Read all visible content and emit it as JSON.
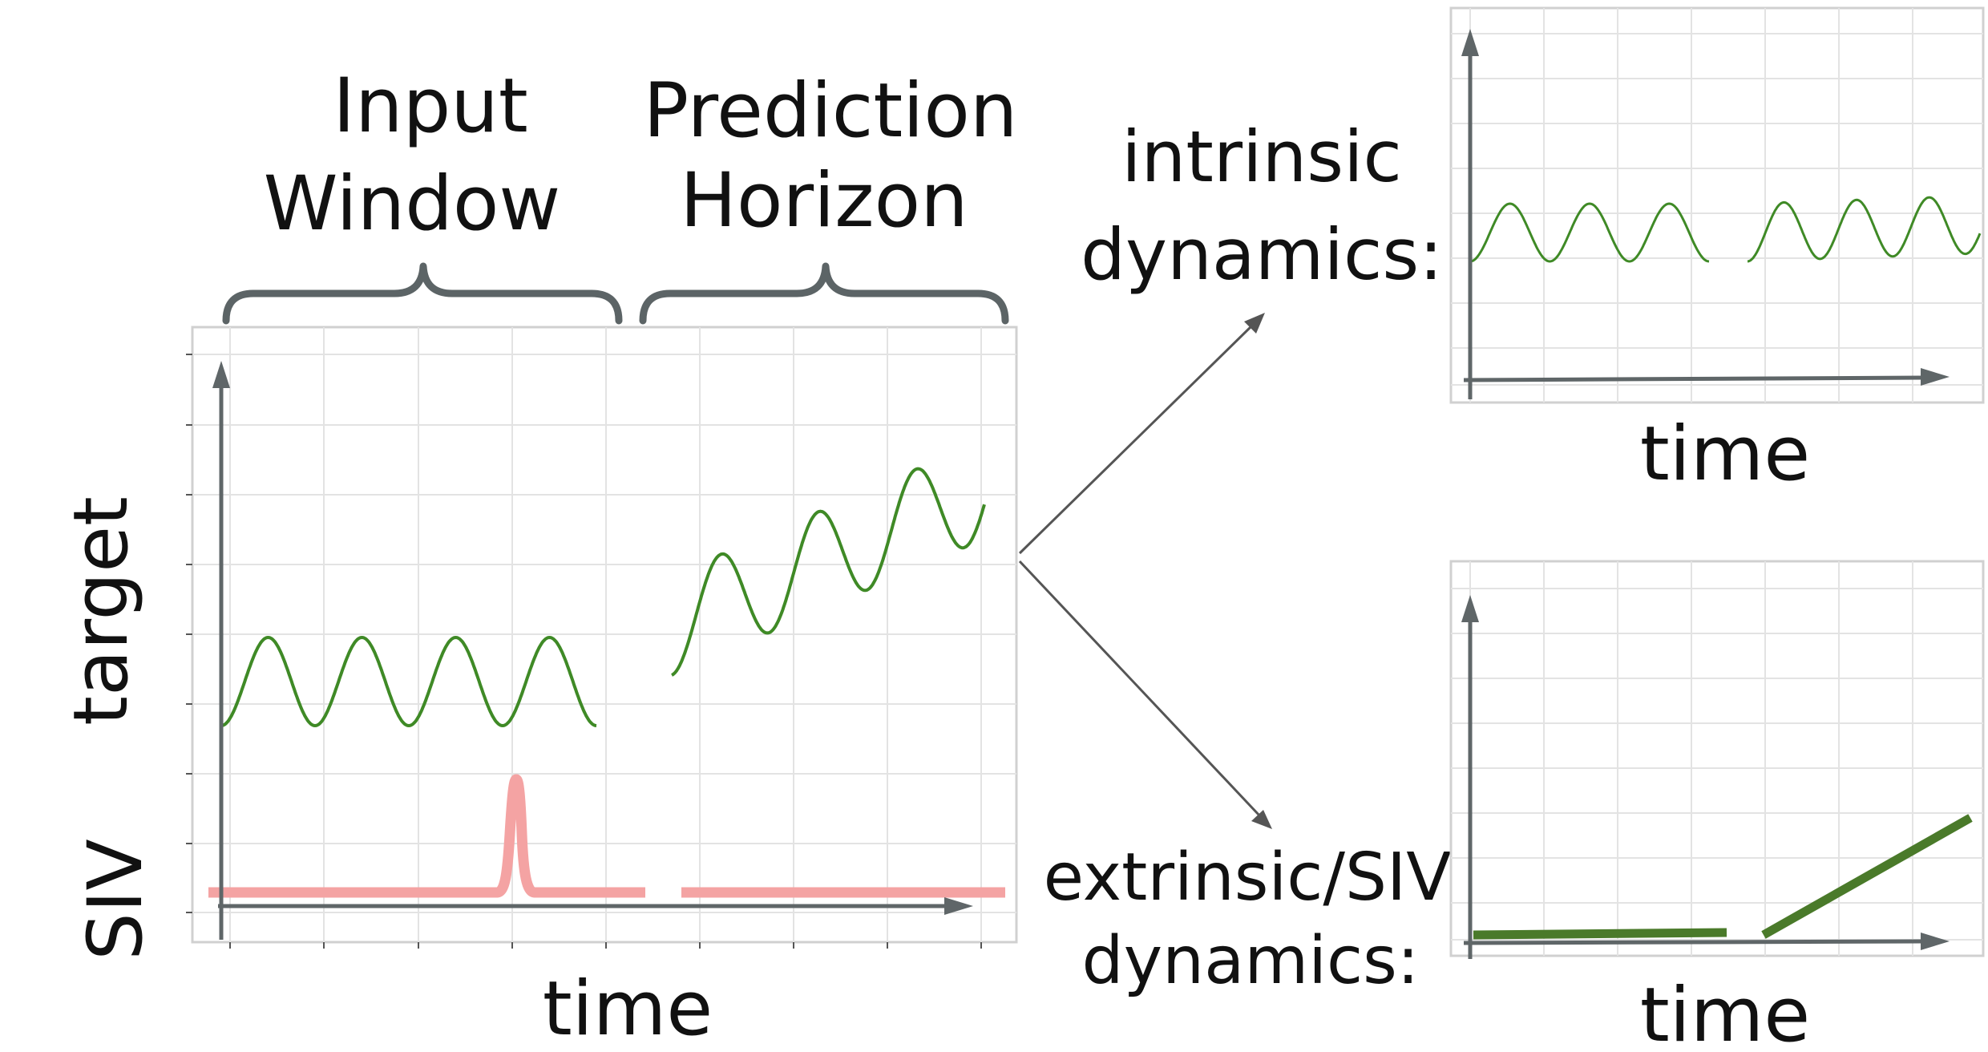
{
  "labels": {
    "input_window": [
      "Input",
      "Window"
    ],
    "prediction_horizon": [
      "Prediction",
      "Horizon"
    ],
    "target_axis": "target",
    "siv_axis": "SIV",
    "time_main": "time",
    "intrinsic": [
      "intrinsic",
      "dynamics:"
    ],
    "extrinsic": [
      "extrinsic/SIV",
      "dynamics:"
    ],
    "time_intrinsic": "time",
    "time_extrinsic": "time"
  },
  "colors": {
    "axis": "#5f6668",
    "grid": "#e3e3e3",
    "frame": "#d0d0d0",
    "brace": "#5c6466",
    "target_curve": "#3f8a26",
    "siv_curve": "#f4a3a3",
    "siv_trend": "#4a7a2a",
    "text": "#111111"
  }
}
